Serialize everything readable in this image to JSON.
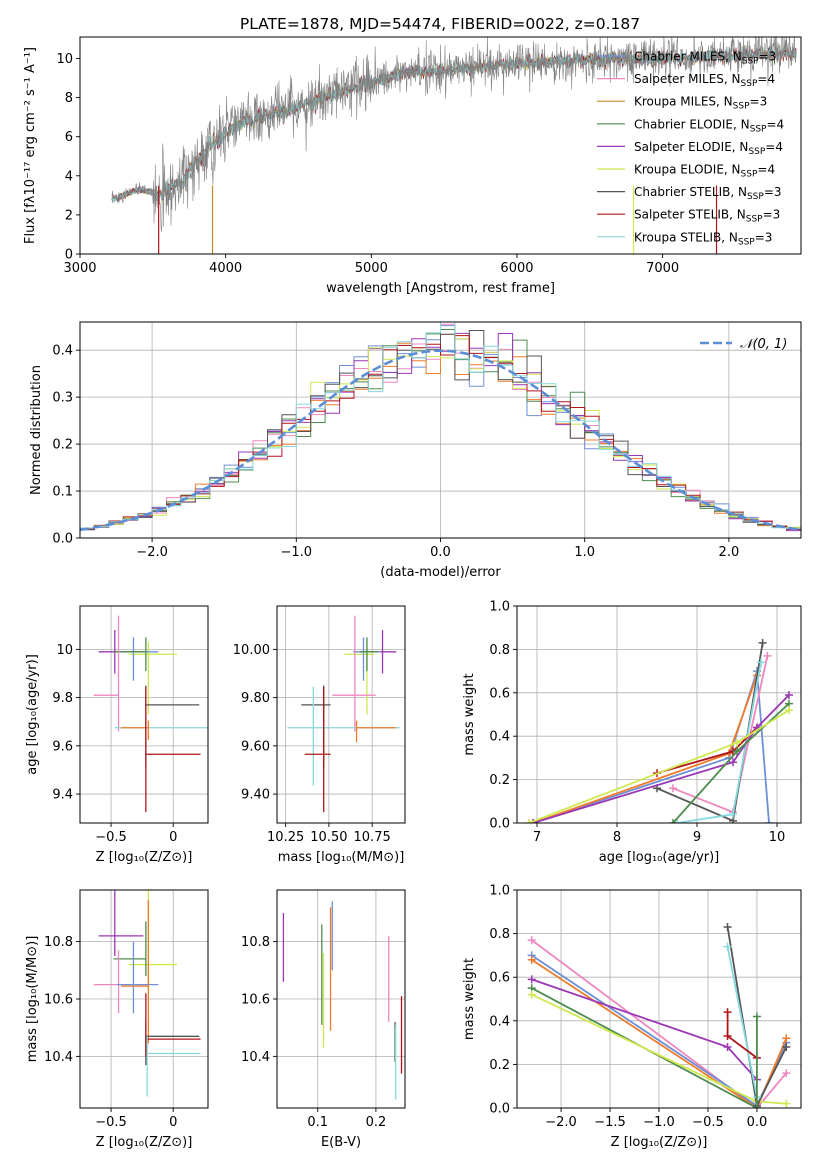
{
  "figure": {
    "title": "PLATE=1878, MJD=54474, FIBERID=0022, z=0.187"
  },
  "colors": {
    "Chabrier MILES": "#6f8fd6",
    "Salpeter MILES": "#ef87c0",
    "Kroupa MILES": "#c98a2a",
    "Chabrier ELODIE": "#4e8c4e",
    "Salpeter ELODIE": "#9b37b5",
    "Kroupa ELODIE": "#cfe84f",
    "Chabrier STELIB": "#555555",
    "Salpeter STELIB": "#b0141b",
    "Kroupa STELIB": "#86d9dc",
    "orange": "#f07c2a",
    "gauss": "#5b8ed6",
    "spectrum": "#808080"
  },
  "chart_data": [
    {
      "id": "spectrum",
      "type": "line",
      "xlabel": "wavelength [Angstrom, rest frame]",
      "ylabel": "Flux [fλ10⁻¹⁷ erg cm⁻² s⁻¹ A⁻¹]",
      "xlim": [
        3000,
        7950
      ],
      "ylim": [
        0,
        11.1
      ],
      "xticks": [
        3000,
        4000,
        5000,
        6000,
        7000
      ],
      "yticks": [
        0,
        2,
        4,
        6,
        8,
        10
      ],
      "grid": false,
      "legend_position": "top-right",
      "data_range": [
        3220,
        7920
      ],
      "continuum_x": [
        3220,
        3400,
        3550,
        3700,
        3900,
        4100,
        4300,
        4600,
        4900,
        5200,
        5500,
        5800,
        6100,
        6400,
        6700,
        7000,
        7300,
        7600,
        7920
      ],
      "continuum_y": [
        2.8,
        3.3,
        3.1,
        3.7,
        5.6,
        6.7,
        7.1,
        7.8,
        8.6,
        9.2,
        9.4,
        9.6,
        9.8,
        9.9,
        10.0,
        10.0,
        10.1,
        10.2,
        10.3
      ],
      "series": [
        {
          "name": "Chabrier MILES",
          "nssp": "3"
        },
        {
          "name": "Salpeter MILES",
          "nssp": "4"
        },
        {
          "name": "Kroupa MILES",
          "nssp": "3"
        },
        {
          "name": "Chabrier ELODIE",
          "nssp": "4"
        },
        {
          "name": "Salpeter ELODIE",
          "nssp": "4"
        },
        {
          "name": "Kroupa ELODIE",
          "nssp": "4"
        },
        {
          "name": "Chabrier STELIB",
          "nssp": "3"
        },
        {
          "name": "Salpeter STELIB",
          "nssp": "3"
        },
        {
          "name": "Kroupa STELIB",
          "nssp": "3"
        }
      ]
    },
    {
      "id": "residuals",
      "type": "line",
      "xlabel": "(data-model)/error",
      "ylabel": "Normed distribution",
      "xlim": [
        -2.5,
        2.5
      ],
      "ylim": [
        0,
        0.46
      ],
      "xticks": [
        -2,
        -1,
        0,
        1,
        2
      ],
      "yticks": [
        0.0,
        0.1,
        0.2,
        0.3,
        0.4
      ],
      "grid": true,
      "legend_position": "top-right",
      "legend": "𝒩(0, 1)",
      "bin_width": 0.1,
      "gaussian": {
        "mean": 0,
        "sigma": 1
      }
    },
    {
      "id": "age_vs_Z",
      "type": "scatter",
      "xlabel": "Z [log₁₀(Z/Z⊙)]",
      "ylabel": "age  [log₁₀(age/yr)]",
      "xlim": [
        -0.75,
        0.28
      ],
      "ylim": [
        9.28,
        10.18
      ],
      "xticks": [
        -0.5,
        0.0
      ],
      "yticks": [
        9.4,
        9.6,
        9.8,
        10.0
      ],
      "grid": true,
      "points": [
        {
          "series": "Salpeter ELODIE",
          "x": -0.47,
          "xerr": [
            0.13,
            0.23
          ],
          "y": 9.99,
          "yerr": [
            0.09,
            0.09
          ]
        },
        {
          "series": "Kroupa ELODIE",
          "x": -0.2,
          "xerr": [
            0.16,
            0.23
          ],
          "y": 9.98,
          "yerr": [
            0.25,
            0.05
          ]
        },
        {
          "series": "Chabrier MILES",
          "x": -0.32,
          "xerr": [
            0.13,
            0.2
          ],
          "y": 9.99,
          "yerr": [
            0.12,
            0.06
          ]
        },
        {
          "series": "Chabrier ELODIE",
          "x": -0.22,
          "xerr": [
            0.26,
            0.0
          ],
          "y": 9.99,
          "yerr": [
            0.08,
            0.06
          ]
        },
        {
          "series": "Salpeter MILES",
          "x": -0.44,
          "xerr": [
            0.2,
            0.0
          ],
          "y": 9.81,
          "yerr": [
            0.15,
            0.33
          ]
        },
        {
          "series": "Chabrier STELIB",
          "x": -0.22,
          "xerr": [
            0.0,
            0.43
          ],
          "y": 9.77,
          "yerr": [
            0.26,
            0.08
          ]
        },
        {
          "series": "Kroupa STELIB",
          "x": -0.47,
          "xerr": [
            0.0,
            0.75
          ],
          "y": 9.675,
          "yerr": [
            0.0,
            0.0
          ]
        },
        {
          "series": "orange",
          "x": -0.2,
          "xerr": [
            0.22,
            0.0
          ],
          "y": 9.675,
          "yerr": [
            0.05,
            0.03
          ]
        },
        {
          "series": "Salpeter STELIB",
          "x": -0.22,
          "xerr": [
            0.0,
            0.44
          ],
          "y": 9.565,
          "yerr": [
            0.24,
            0.28
          ]
        }
      ]
    },
    {
      "id": "age_vs_mass",
      "type": "scatter",
      "xlabel": "mass [log₁₀(M/M⊙)]",
      "ylabel": "",
      "xlim": [
        10.2,
        10.94
      ],
      "ylim": [
        9.28,
        10.18
      ],
      "xticks": [
        10.25,
        10.5,
        10.75
      ],
      "yticks": [
        9.4,
        9.6,
        9.8,
        10.0
      ],
      "grid": true,
      "points": [
        {
          "series": "Salpeter ELODIE",
          "x": 10.81,
          "xerr": [
            0.13,
            0.08
          ],
          "y": 9.99,
          "yerr": [
            0.09,
            0.09
          ]
        },
        {
          "series": "Kroupa ELODIE",
          "x": 10.72,
          "xerr": [
            0.13,
            0.04
          ],
          "y": 9.98,
          "yerr": [
            0.25,
            0.05
          ]
        },
        {
          "series": "Chabrier MILES",
          "x": 10.7,
          "xerr": [
            0.06,
            0.1
          ],
          "y": 9.99,
          "yerr": [
            0.12,
            0.06
          ]
        },
        {
          "series": "Chabrier ELODIE",
          "x": 10.72,
          "xerr": [
            0.04,
            0.06
          ],
          "y": 9.99,
          "yerr": [
            0.08,
            0.06
          ]
        },
        {
          "series": "Salpeter MILES",
          "x": 10.65,
          "xerr": [
            0.13,
            0.12
          ],
          "y": 9.81,
          "yerr": [
            0.15,
            0.33
          ]
        },
        {
          "series": "Chabrier STELIB",
          "x": 10.47,
          "xerr": [
            0.13,
            0.04
          ],
          "y": 9.77,
          "yerr": [
            0.26,
            0.08
          ]
        },
        {
          "series": "Kroupa STELIB",
          "x": 10.41,
          "xerr": [
            0.15,
            0.5
          ],
          "y": 9.675,
          "yerr": [
            0.24,
            0.17
          ]
        },
        {
          "series": "orange",
          "x": 10.66,
          "xerr": [
            0.0,
            0.23
          ],
          "y": 9.675,
          "yerr": [
            0.06,
            0.03
          ]
        },
        {
          "series": "Salpeter STELIB",
          "x": 10.47,
          "xerr": [
            0.11,
            0.04
          ],
          "y": 9.565,
          "yerr": [
            0.24,
            0.28
          ]
        }
      ]
    },
    {
      "id": "weight_vs_age",
      "type": "line",
      "xlabel": "age  [log₁₀(age/yr)]",
      "ylabel": "mass weight",
      "xlim": [
        6.75,
        10.3
      ],
      "ylim": [
        0,
        1
      ],
      "xticks": [
        7,
        8,
        9,
        10
      ],
      "yticks": [
        0.0,
        0.2,
        0.4,
        0.6,
        0.8,
        1.0
      ],
      "grid": true,
      "series": [
        {
          "name": "Chabrier MILES",
          "x": [
            6.95,
            9.4,
            9.75,
            9.9
          ],
          "y": [
            0.0,
            0.3,
            0.7,
            0.0
          ]
        },
        {
          "name": "orange",
          "x": [
            6.95,
            9.4,
            9.75
          ],
          "y": [
            0.0,
            0.32,
            0.68
          ]
        },
        {
          "name": "Salpeter MILES",
          "x": [
            8.7,
            9.45,
            9.88
          ],
          "y": [
            0.16,
            0.05,
            0.77
          ]
        },
        {
          "name": "Chabrier STELIB",
          "x": [
            8.5,
            9.45,
            9.82
          ],
          "y": [
            0.16,
            0.01,
            0.83
          ]
        },
        {
          "name": "Kroupa STELIB",
          "x": [
            8.75,
            9.45,
            9.8
          ],
          "y": [
            0.0,
            0.04,
            0.74
          ]
        },
        {
          "name": "Salpeter STELIB",
          "x": [
            8.5,
            9.45,
            9.75
          ],
          "y": [
            0.23,
            0.33,
            0.44
          ]
        },
        {
          "name": "Salpeter ELODIE",
          "x": [
            6.95,
            9.45,
            9.75,
            10.15
          ],
          "y": [
            0.0,
            0.28,
            0.44,
            0.59
          ]
        },
        {
          "name": "Chabrier ELODIE",
          "x": [
            8.7,
            9.5,
            10.15
          ],
          "y": [
            0.0,
            0.33,
            0.55
          ]
        },
        {
          "name": "Kroupa ELODIE",
          "x": [
            6.9,
            9.5,
            10.15
          ],
          "y": [
            0.0,
            0.37,
            0.52
          ]
        }
      ]
    },
    {
      "id": "mass_vs_Z",
      "type": "scatter",
      "xlabel": "Z [log₁₀(Z/Z⊙)]",
      "ylabel": "mass [log₁₀(M/M⊙)]",
      "xlim": [
        -0.75,
        0.28
      ],
      "ylim": [
        10.22,
        10.98
      ],
      "xticks": [
        -0.5,
        0.0
      ],
      "yticks": [
        10.4,
        10.6,
        10.8
      ],
      "grid": true,
      "points": [
        {
          "series": "Salpeter ELODIE",
          "x": -0.47,
          "xerr": [
            0.13,
            0.23
          ],
          "y": 10.82,
          "yerr": [
            0.07,
            0.17
          ]
        },
        {
          "series": "Kroupa ELODIE",
          "x": -0.2,
          "xerr": [
            0.16,
            0.23
          ],
          "y": 10.72,
          "yerr": [
            0.1,
            0.29
          ]
        },
        {
          "series": "Chabrier ELODIE",
          "x": -0.22,
          "xerr": [
            0.26,
            0.0
          ],
          "y": 10.74,
          "yerr": [
            0.06,
            0.13
          ]
        },
        {
          "series": "Salpeter MILES",
          "x": -0.44,
          "xerr": [
            0.2,
            0.0
          ],
          "y": 10.65,
          "yerr": [
            0.1,
            0.12
          ]
        },
        {
          "series": "Chabrier MILES",
          "x": -0.32,
          "xerr": [
            0.13,
            0.2
          ],
          "y": 10.65,
          "yerr": [
            0.1,
            0.15
          ]
        },
        {
          "series": "orange",
          "x": -0.2,
          "xerr": [
            0.22,
            0.0
          ],
          "y": 10.645,
          "yerr": [
            0.2,
            0.3
          ]
        },
        {
          "series": "Chabrier STELIB",
          "x": -0.22,
          "xerr": [
            0.0,
            0.43
          ],
          "y": 10.47,
          "yerr": [
            0.1,
            0.06
          ]
        },
        {
          "series": "Salpeter STELIB",
          "x": -0.22,
          "xerr": [
            0.0,
            0.44
          ],
          "y": 10.46,
          "yerr": [
            0.06,
            0.16
          ]
        },
        {
          "series": "Kroupa STELIB",
          "x": -0.21,
          "xerr": [
            0.0,
            0.43
          ],
          "y": 10.41,
          "yerr": [
            0.15,
            0.06
          ]
        }
      ]
    },
    {
      "id": "mass_vs_ebv",
      "type": "scatter",
      "xlabel": "E(B-V)",
      "ylabel": "",
      "xlim": [
        0.03,
        0.25
      ],
      "ylim": [
        10.22,
        10.98
      ],
      "xticks": [
        0.1,
        0.2
      ],
      "yticks": [
        10.4,
        10.6,
        10.8
      ],
      "grid": true,
      "points": [
        {
          "series": "Salpeter ELODIE",
          "x": 0.041,
          "y": 10.78,
          "yerr": [
            0.12,
            0.12
          ]
        },
        {
          "series": "Chabrier ELODIE",
          "x": 0.107,
          "y": 10.69,
          "yerr": [
            0.18,
            0.17
          ]
        },
        {
          "series": "Kroupa ELODIE",
          "x": 0.11,
          "y": 10.57,
          "yerr": [
            0.14,
            0.19
          ]
        },
        {
          "series": "orange",
          "x": 0.122,
          "y": 10.66,
          "yerr": [
            0.17,
            0.26
          ]
        },
        {
          "series": "Chabrier MILES",
          "x": 0.125,
          "y": 10.7,
          "yerr": [
            0.0,
            0.24
          ]
        },
        {
          "series": "Salpeter MILES",
          "x": 0.222,
          "y": 10.67,
          "yerr": [
            0.15,
            0.15
          ]
        },
        {
          "series": "Chabrier STELIB",
          "x": 0.233,
          "y": 10.38,
          "yerr": [
            0.0,
            0.14
          ]
        },
        {
          "series": "Kroupa STELIB",
          "x": 0.234,
          "y": 10.36,
          "yerr": [
            0.11,
            0.15
          ]
        },
        {
          "series": "Salpeter STELIB",
          "x": 0.244,
          "y": 10.47,
          "yerr": [
            0.13,
            0.14
          ]
        }
      ]
    },
    {
      "id": "weight_vs_Z",
      "type": "line",
      "xlabel": "Z [log₁₀(Z/Z⊙)]",
      "ylabel": "mass weight",
      "xlim": [
        -2.45,
        0.45
      ],
      "ylim": [
        0,
        1
      ],
      "xticks": [
        -2.0,
        -1.5,
        -1.0,
        -0.5,
        0.0
      ],
      "yticks": [
        0.0,
        0.2,
        0.4,
        0.6,
        0.8,
        1.0
      ],
      "grid": true,
      "series": [
        {
          "name": "Salpeter MILES",
          "x": [
            -2.3,
            0.0,
            0.3
          ],
          "y": [
            0.77,
            0.0,
            0.16
          ]
        },
        {
          "name": "Chabrier MILES",
          "x": [
            -2.3,
            0.0,
            0.3
          ],
          "y": [
            0.7,
            0.01,
            0.3
          ]
        },
        {
          "name": "orange",
          "x": [
            -2.3,
            0.0,
            0.3
          ],
          "y": [
            0.68,
            0.0,
            0.32
          ]
        },
        {
          "name": "Chabrier ELODIE",
          "x": [
            -2.3,
            0.0
          ],
          "y": [
            0.55,
            0.0
          ]
        },
        {
          "name": "Salpeter ELODIE",
          "x": [
            -2.3,
            -0.3,
            0.0
          ],
          "y": [
            0.59,
            0.28,
            0.13
          ]
        },
        {
          "name": "Kroupa ELODIE",
          "x": [
            -2.3,
            0.0,
            0.3
          ],
          "y": [
            0.52,
            0.03,
            0.02
          ]
        },
        {
          "name": "Chabrier STELIB",
          "x": [
            -0.3,
            0.0,
            0.3
          ],
          "y": [
            0.83,
            0.01,
            0.28
          ]
        },
        {
          "name": "Kroupa STELIB",
          "x": [
            -0.3,
            0.0
          ],
          "y": [
            0.74,
            0.05
          ]
        },
        {
          "name": "Salpeter STELIB",
          "x": [
            -0.3,
            -0.3,
            0.0
          ],
          "y": [
            0.44,
            0.33,
            0.23
          ]
        },
        {
          "name": "Chabrier ELODIE",
          "x": [
            0.0,
            0.0
          ],
          "y": [
            0.42,
            0.0
          ]
        }
      ]
    }
  ]
}
